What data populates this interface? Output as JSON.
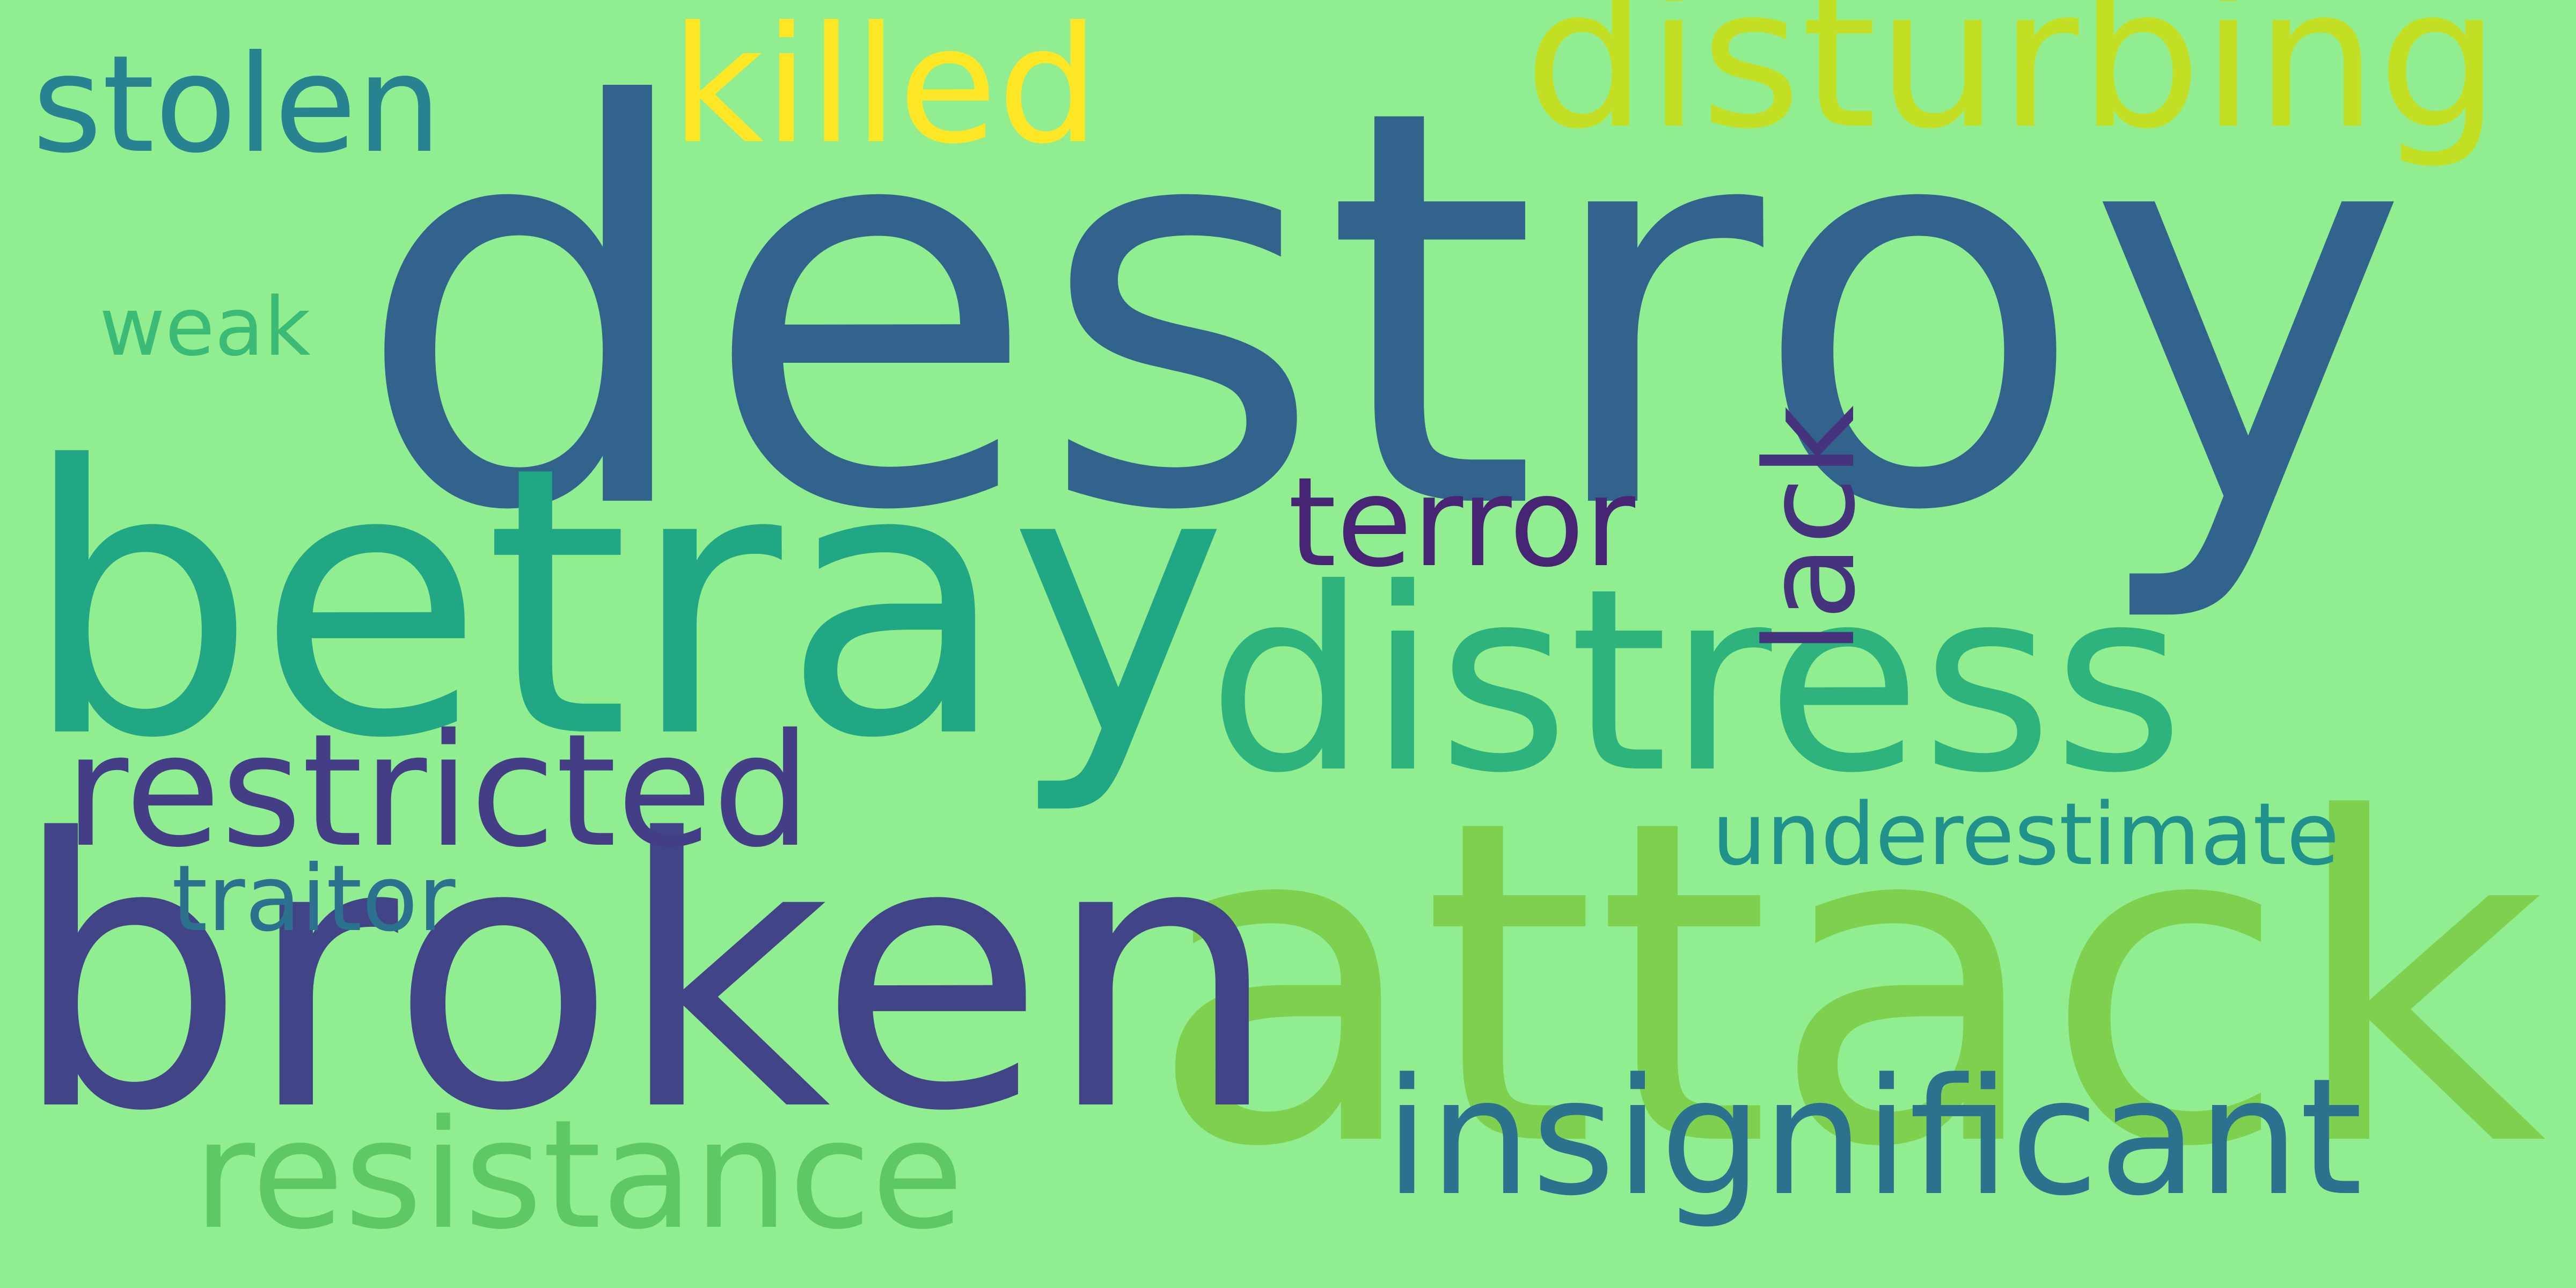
{
  "background": "#90ee90",
  "words": [
    {
      "id": "w-destroy",
      "name": "word-destroy",
      "text": "destroy",
      "color": "#31638d"
    },
    {
      "id": "w-attack",
      "name": "word-attack",
      "text": "attack",
      "color": "#7fd04f"
    },
    {
      "id": "w-betray",
      "name": "word-betray",
      "text": "betray",
      "color": "#22a785"
    },
    {
      "id": "w-broken",
      "name": "word-broken",
      "text": "broken",
      "color": "#414487"
    },
    {
      "id": "w-distress",
      "name": "word-distress",
      "text": "distress",
      "color": "#2eb37c"
    },
    {
      "id": "w-disturbing",
      "name": "word-disturbing",
      "text": "disturbing",
      "color": "#c2df23"
    },
    {
      "id": "w-insignificant",
      "name": "word-insignificant",
      "text": "insignificant",
      "color": "#2c728e"
    },
    {
      "id": "w-restricted",
      "name": "word-restricted",
      "text": "restricted",
      "color": "#433e85"
    },
    {
      "id": "w-resistance",
      "name": "word-resistance",
      "text": "resistance",
      "color": "#5ec962"
    },
    {
      "id": "w-killed",
      "name": "word-killed",
      "text": "killed",
      "color": "#fde725"
    },
    {
      "id": "w-stolen",
      "name": "word-stolen",
      "text": "stolen",
      "color": "#26838f"
    },
    {
      "id": "w-terror",
      "name": "word-terror",
      "text": "terror",
      "color": "#482475"
    },
    {
      "id": "w-underestimate",
      "name": "word-underestimate",
      "text": "underestimate",
      "color": "#21918c"
    },
    {
      "id": "w-traitor",
      "name": "word-traitor",
      "text": "traitor",
      "color": "#2c728e"
    },
    {
      "id": "w-weak",
      "name": "word-weak",
      "text": "weak",
      "color": "#3bbb75"
    },
    {
      "id": "w-lack",
      "name": "word-lack",
      "text": "lack",
      "color": "#46337e"
    }
  ]
}
